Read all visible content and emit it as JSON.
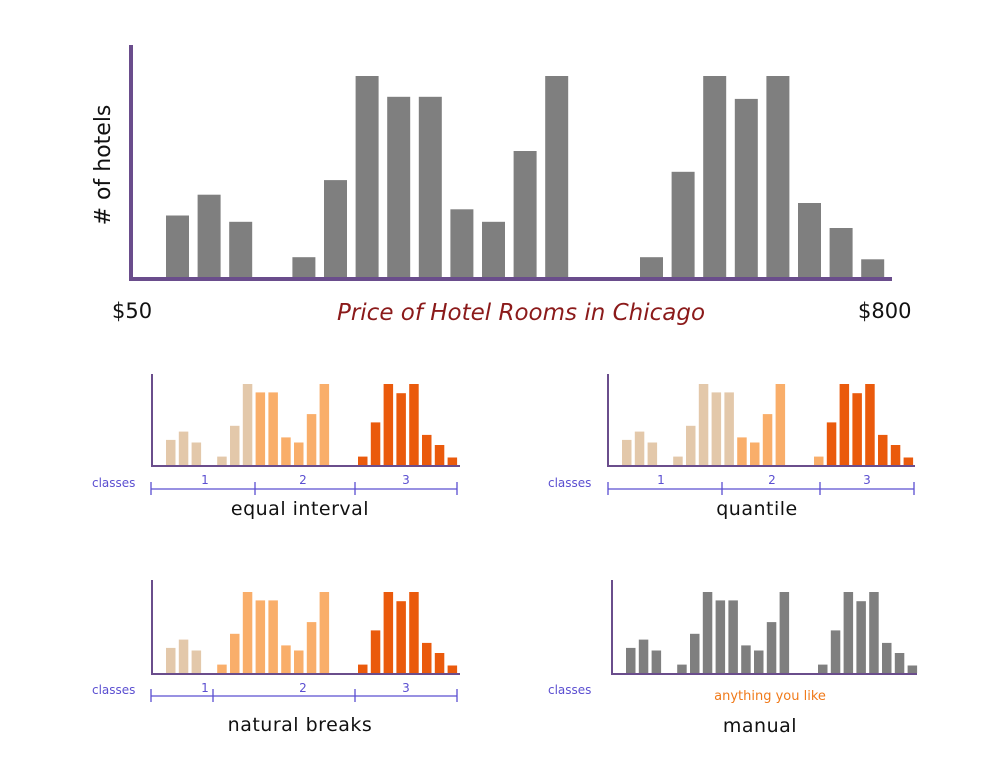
{
  "colors": {
    "bar_gray": "#7f7f7f",
    "axis_purple": "#6a4d8c",
    "class_tan": "#e3c8aa",
    "class_light_orange": "#f9ae6a",
    "class_orange": "#ea5a0c",
    "classes_text": "#5b4fd1",
    "title_red": "#8b1a1a",
    "anything_orange": "#f07a1a"
  },
  "chart_data": [
    {
      "type": "bar",
      "ylabel": "# of hotels",
      "x_start_label": "$50",
      "x_end_label": "$800",
      "title": "Price of Hotel Rooms in Chicago",
      "values": [
        3,
        4,
        2.7,
        0,
        1,
        4.7,
        9.7,
        8.7,
        8.7,
        3.3,
        2.7,
        6.1,
        9.7,
        0,
        0,
        1,
        5.1,
        9.7,
        8.6,
        9.7,
        3.6,
        2.4,
        0.9
      ]
    },
    {
      "type": "bar",
      "subtitle": "equal interval",
      "classes_label": "classes",
      "class_labels": [
        "1",
        "2",
        "3"
      ],
      "values": [
        3,
        4,
        2.7,
        0,
        1,
        4.7,
        9.7,
        8.7,
        8.7,
        3.3,
        2.7,
        6.1,
        9.7,
        0,
        0,
        1,
        5.1,
        9.7,
        8.6,
        9.7,
        3.6,
        2.4,
        0.9
      ],
      "classes": [
        1,
        1,
        1,
        0,
        1,
        1,
        1,
        2,
        2,
        2,
        2,
        2,
        2,
        0,
        0,
        3,
        3,
        3,
        3,
        3,
        3,
        3,
        3
      ]
    },
    {
      "type": "bar",
      "subtitle": "quantile",
      "classes_label": "classes",
      "class_labels": [
        "1",
        "2",
        "3"
      ],
      "values": [
        3,
        4,
        2.7,
        0,
        1,
        4.7,
        9.7,
        8.7,
        8.7,
        3.3,
        2.7,
        6.1,
        9.7,
        0,
        0,
        1,
        5.1,
        9.7,
        8.6,
        9.7,
        3.6,
        2.4,
        0.9
      ],
      "classes": [
        1,
        1,
        1,
        0,
        1,
        1,
        1,
        1,
        1,
        2,
        2,
        2,
        2,
        0,
        0,
        2,
        3,
        3,
        3,
        3,
        3,
        3,
        3
      ]
    },
    {
      "type": "bar",
      "subtitle": "natural breaks",
      "classes_label": "classes",
      "class_labels": [
        "1",
        "2",
        "3"
      ],
      "values": [
        3,
        4,
        2.7,
        0,
        1,
        4.7,
        9.7,
        8.7,
        8.7,
        3.3,
        2.7,
        6.1,
        9.7,
        0,
        0,
        1,
        5.1,
        9.7,
        8.6,
        9.7,
        3.6,
        2.4,
        0.9
      ],
      "classes": [
        1,
        1,
        1,
        0,
        2,
        2,
        2,
        2,
        2,
        2,
        2,
        2,
        2,
        0,
        0,
        3,
        3,
        3,
        3,
        3,
        3,
        3,
        3
      ]
    },
    {
      "type": "bar",
      "subtitle": "manual",
      "classes_label": "classes",
      "note": "anything you like",
      "values": [
        3,
        4,
        2.7,
        0,
        1,
        4.7,
        9.7,
        8.7,
        8.7,
        3.3,
        2.7,
        6.1,
        9.7,
        0,
        0,
        1,
        5.1,
        9.7,
        8.6,
        9.7,
        3.6,
        2.4,
        0.9
      ],
      "classes": [
        0,
        0,
        0,
        0,
        0,
        0,
        0,
        0,
        0,
        0,
        0,
        0,
        0,
        0,
        0,
        0,
        0,
        0,
        0,
        0,
        0,
        0,
        0
      ]
    }
  ]
}
